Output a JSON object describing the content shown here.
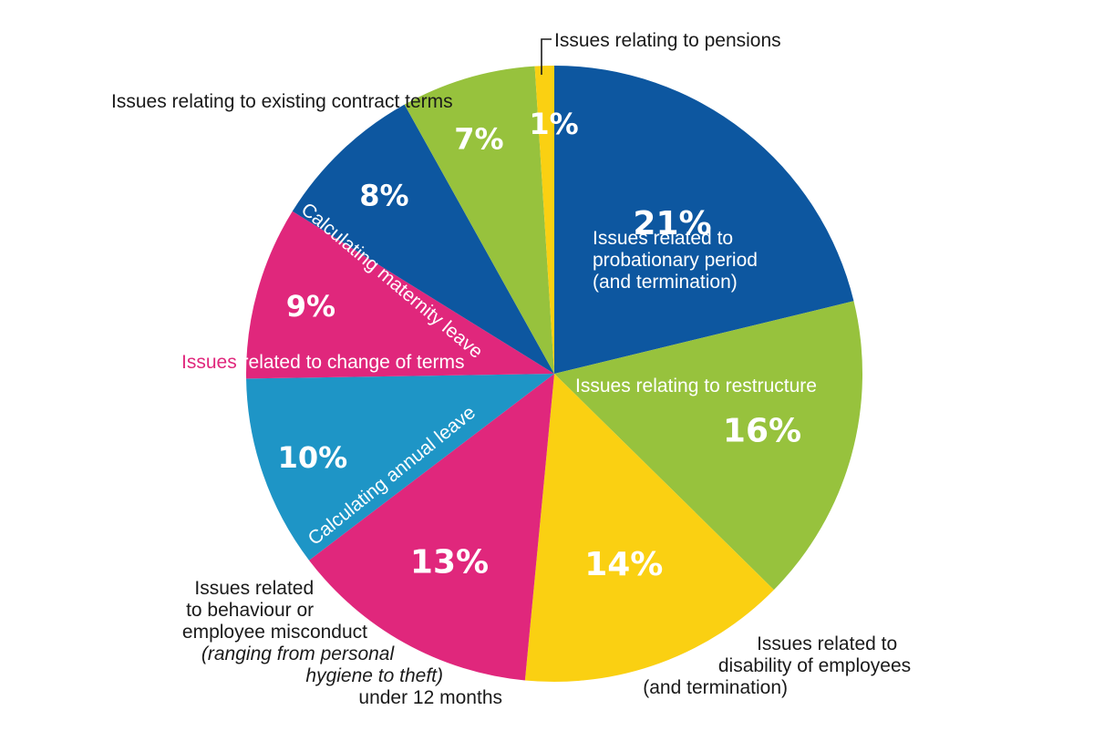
{
  "chart_data": {
    "type": "pie",
    "slices": [
      {
        "label": "Issues related to probationary period (and termination)",
        "value": 21,
        "display": "21%",
        "color": "#0d57a0"
      },
      {
        "label": "Issues relating to restructure",
        "value": 16,
        "display": "16%",
        "color": "#97c23d"
      },
      {
        "label": "Issues related to disability of employees (and termination)",
        "value": 14,
        "display": "14%",
        "color": "#fad012"
      },
      {
        "label": "Issues related to behaviour or employee misconduct (ranging from personal hygiene to theft) under 12 months",
        "value": 13,
        "display": "13%",
        "color": "#e0277c"
      },
      {
        "label": "Calculating annual leave",
        "value": 10,
        "display": "10%",
        "color": "#1e95c6"
      },
      {
        "label": "Issues related to change of terms",
        "value": 9,
        "display": "9%",
        "color": "#e0277c"
      },
      {
        "label": "Calculating maternity leave",
        "value": 8,
        "display": "8%",
        "color": "#0d57a0"
      },
      {
        "label": "Issues relating to existing contract terms",
        "value": 7,
        "display": "7%",
        "color": "#97c23d"
      },
      {
        "label": "Issues relating to pensions",
        "value": 1,
        "display": "1%",
        "color": "#fad012"
      }
    ]
  },
  "labels": {
    "probation": [
      "Issues related to",
      "probationary period",
      "(and termination)"
    ],
    "restructure": "Issues relating to restructure",
    "disability": [
      "Issues related to",
      "disability of employees",
      "(and termination)"
    ],
    "behaviour": [
      "Issues related",
      "to behaviour or",
      "employee misconduct"
    ],
    "behaviour_italic": [
      "(ranging from personal",
      "hygiene to theft)"
    ],
    "behaviour_tail": "under 12 months",
    "annual": "Calculating annual leave",
    "change_prefix": "Issues",
    "change_rest": " related to change of terms",
    "maternity": "Calculating maternity leave",
    "existing": "Issues relating to existing contract terms",
    "pensions": "Issues relating to pensions"
  }
}
